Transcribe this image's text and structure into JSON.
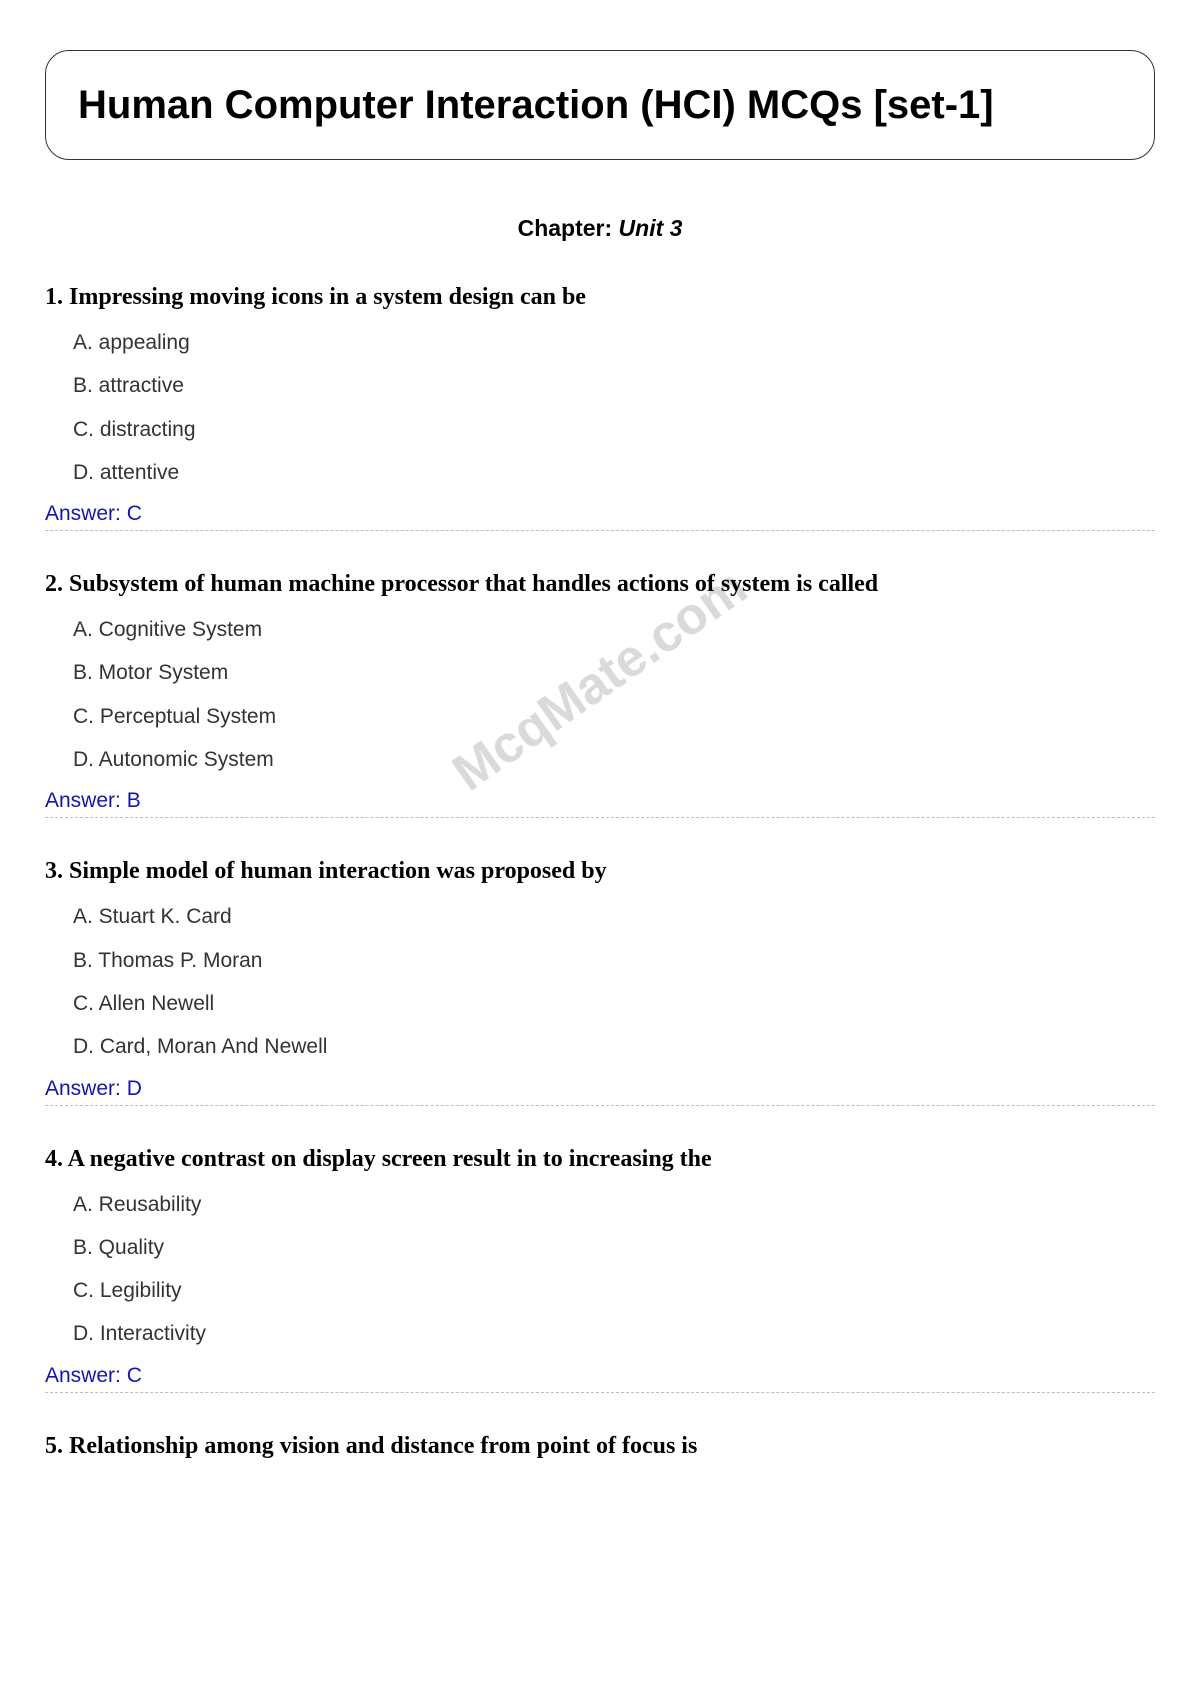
{
  "title": "Human Computer Interaction (HCI) MCQs [set-1]",
  "chapter_label": "Chapter: ",
  "chapter_unit": "Unit 3",
  "watermark": "McqMate.com",
  "answer_label_prefix": "Answer: ",
  "colors": {
    "text": "#000000",
    "option_text": "#333333",
    "answer_text": "#1515b5",
    "divider": "#bdbdbd",
    "border": "#333333",
    "background": "#ffffff",
    "watermark": "rgba(150,150,150,0.35)"
  },
  "fonts": {
    "title_size": 40,
    "chapter_size": 23,
    "question_size": 24,
    "option_size": 21,
    "answer_size": 21
  },
  "questions": [
    {
      "number": "1.",
      "text": "Impressing moving icons in a system design can be",
      "options": [
        "A. appealing",
        "B. attractive",
        "C. distracting",
        "D. attentive"
      ],
      "answer": "C"
    },
    {
      "number": "2.",
      "text": "Subsystem of human machine processor that handles actions of system is called",
      "options": [
        "A. Cognitive System",
        "B. Motor System",
        "C. Perceptual System",
        "D. Autonomic System"
      ],
      "answer": "B"
    },
    {
      "number": "3.",
      "text": "Simple model of human interaction was proposed by",
      "options": [
        "A. Stuart K. Card",
        "B. Thomas P. Moran",
        "C. Allen Newell",
        "D. Card, Moran And Newell"
      ],
      "answer": "D"
    },
    {
      "number": "4.",
      "text": "A negative contrast on display screen result in to increasing the",
      "options": [
        "A. Reusability",
        "B. Quality",
        "C. Legibility",
        "D. Interactivity"
      ],
      "answer": "C"
    },
    {
      "number": "5.",
      "text": "Relationship among vision and distance from point of focus is",
      "options": [],
      "answer": null
    }
  ]
}
